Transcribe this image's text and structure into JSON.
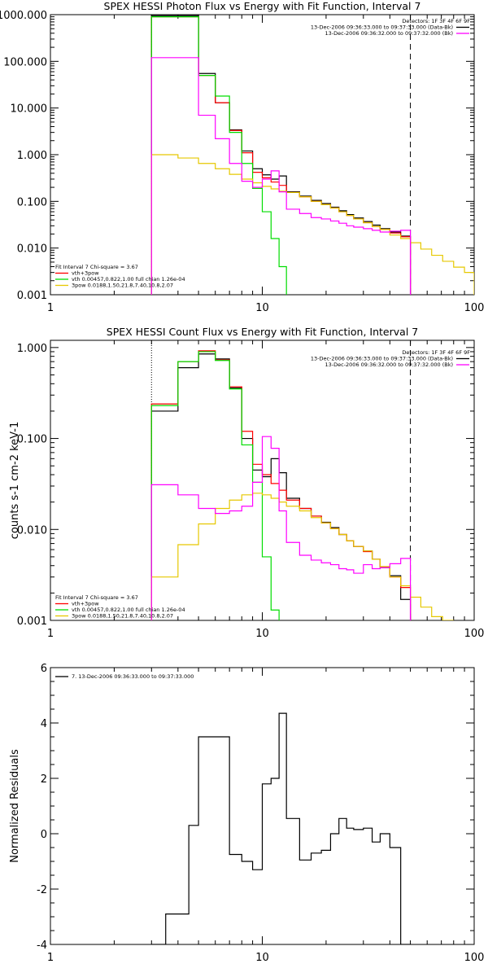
{
  "chart_data": [
    {
      "type": "line",
      "title": "SPEX HESSI Photon Flux vs Energy with Fit Function, Interval 7",
      "xlabel": "",
      "ylabel": "",
      "x_scale": "log",
      "y_scale": "log",
      "xlim": [
        1,
        100
      ],
      "ylim": [
        0.001,
        1000
      ],
      "x_tick_labels": [
        "1",
        "10",
        "100"
      ],
      "y_tick_labels": [
        "0.001",
        "0.010",
        "0.100",
        "1.000",
        "10.000",
        "100.000",
        "1000.000"
      ],
      "vlines": [
        {
          "x": 3,
          "style": "dotted",
          "color": "#000000"
        },
        {
          "x": 50,
          "style": "dashed",
          "color": "#000000"
        }
      ],
      "info_lines": [
        "Detectors: 1F 3F 4F 6F 9F",
        "13-Dec-2006 09:36:33.000 to 09:37:33.000 (Data-Bk)",
        "13-Dec-2006 09:36:32.000 to 09:37:32.000 (Bk)"
      ],
      "info_colors": [
        "#000000",
        "#ff00ff"
      ],
      "legend_title": "Fit Interval  7    Chi-square = 3.67",
      "legend_entries": [
        {
          "label": "vth+3pow",
          "color": "#ff0000"
        },
        {
          "label": "vth 0.00457,0.822,1.00   full chian 1.26e-04",
          "color": "#00dd00"
        },
        {
          "label": "3pow 0.0188,1.50,21.8,7.40,10.8,2.07",
          "color": "#e6c800"
        }
      ],
      "series": [
        {
          "name": "Data-Bk",
          "color": "#000000",
          "edges": [
            3,
            4,
            5,
            6,
            7,
            8,
            9,
            10,
            11,
            12,
            13,
            15,
            17,
            19,
            21,
            23,
            25,
            27,
            30,
            33,
            36,
            40,
            45,
            50
          ],
          "values": [
            950,
            950,
            55,
            13,
            3.4,
            1.2,
            0.5,
            0.37,
            0.3,
            0.35,
            0.16,
            0.13,
            0.105,
            0.09,
            0.075,
            0.063,
            0.052,
            0.044,
            0.037,
            0.031,
            0.026,
            0.022,
            0.018
          ]
        },
        {
          "name": "vth+3pow",
          "color": "#ff0000",
          "edges": [
            3,
            4,
            5,
            6,
            7,
            8,
            9,
            10,
            11,
            12,
            13,
            15,
            17,
            19,
            21,
            23,
            25,
            27,
            30,
            33,
            36,
            40,
            45,
            50
          ],
          "values": [
            900,
            900,
            50,
            13,
            3.3,
            1.1,
            0.42,
            0.32,
            0.26,
            0.22,
            0.155,
            0.125,
            0.1,
            0.085,
            0.072,
            0.06,
            0.05,
            0.042,
            0.035,
            0.029,
            0.025,
            0.021,
            0.0175
          ]
        },
        {
          "name": "vth",
          "color": "#00dd00",
          "edges": [
            3,
            4,
            5,
            6,
            7,
            8,
            9,
            10,
            11,
            12,
            13
          ],
          "values": [
            900,
            900,
            50,
            18,
            3.0,
            0.65,
            0.19,
            0.06,
            0.016,
            0.004
          ]
        },
        {
          "name": "3pow",
          "color": "#e6c800",
          "edges": [
            3,
            4,
            5,
            6,
            7,
            8,
            9,
            10,
            11,
            12,
            13,
            15,
            17,
            19,
            21,
            23,
            25,
            27,
            30,
            33,
            36,
            40,
            45,
            50,
            56,
            63,
            71,
            80,
            90,
            100
          ],
          "values": [
            1.0,
            0.85,
            0.65,
            0.5,
            0.38,
            0.3,
            0.25,
            0.21,
            0.185,
            0.165,
            0.155,
            0.125,
            0.1,
            0.085,
            0.072,
            0.06,
            0.05,
            0.042,
            0.035,
            0.029,
            0.025,
            0.019,
            0.016,
            0.013,
            0.0095,
            0.007,
            0.0052,
            0.0039,
            0.003
          ]
        },
        {
          "name": "Bk",
          "color": "#ff00ff",
          "edges": [
            3,
            4,
            5,
            6,
            7,
            8,
            9,
            10,
            11,
            12,
            13,
            15,
            17,
            19,
            21,
            23,
            25,
            27,
            30,
            33,
            36,
            40,
            45,
            50
          ],
          "values": [
            120,
            120,
            7,
            2.2,
            0.65,
            0.27,
            0.2,
            0.3,
            0.45,
            0.16,
            0.068,
            0.055,
            0.045,
            0.042,
            0.038,
            0.034,
            0.03,
            0.028,
            0.026,
            0.024,
            0.022,
            0.023,
            0.024
          ]
        }
      ]
    },
    {
      "type": "line",
      "title": "SPEX HESSI Count Flux vs Energy with Fit Function, Interval 7",
      "xlabel": "",
      "ylabel": "counts s-1 cm-2 keV-1",
      "x_scale": "log",
      "y_scale": "log",
      "xlim": [
        1,
        100
      ],
      "ylim": [
        0.001,
        1.2
      ],
      "x_tick_labels": [
        "1",
        "10",
        "100"
      ],
      "y_tick_labels": [
        "0.001",
        "0.010",
        "0.100",
        "1.000"
      ],
      "vlines": [
        {
          "x": 3,
          "style": "dotted",
          "color": "#000000"
        },
        {
          "x": 50,
          "style": "dashed",
          "color": "#000000"
        }
      ],
      "info_lines": [
        "Detectors: 1F 3F 4F 6F 9F",
        "13-Dec-2006 09:36:33.000 to 09:37:33.000 (Data-Bk)",
        "13-Dec-2006 09:36:32.000 to 09:37:32.000 (Bk)"
      ],
      "info_colors": [
        "#000000",
        "#ff00ff"
      ],
      "legend_title": "Fit Interval  7    Chi-square = 3.67",
      "legend_entries": [
        {
          "label": "vth+3pow",
          "color": "#ff0000"
        },
        {
          "label": "vth 0.00457,0.822,1.00   full chian 1.26e-04",
          "color": "#00dd00"
        },
        {
          "label": "3pow 0.0188,1.50,21.8,7.40,10.8,2.07",
          "color": "#e6c800"
        }
      ],
      "series": [
        {
          "name": "Data-Bk",
          "color": "#000000",
          "edges": [
            3,
            4,
            5,
            6,
            7,
            8,
            9,
            10,
            11,
            12,
            13,
            15,
            17,
            19,
            21,
            23,
            25,
            27,
            30,
            33,
            36,
            40,
            45,
            50
          ],
          "values": [
            0.2,
            0.6,
            0.85,
            0.75,
            0.36,
            0.1,
            0.045,
            0.038,
            0.06,
            0.042,
            0.022,
            0.017,
            0.014,
            0.012,
            0.0105,
            0.0088,
            0.0075,
            0.0065,
            0.0058,
            0.0047,
            0.0038,
            0.0031,
            0.0017
          ]
        },
        {
          "name": "vth+3pow",
          "color": "#ff0000",
          "edges": [
            3,
            4,
            5,
            6,
            7,
            8,
            9,
            10,
            11,
            12,
            13,
            15,
            17,
            19,
            21,
            23,
            25,
            27,
            30,
            33,
            36,
            40,
            45,
            50
          ],
          "values": [
            0.24,
            0.7,
            0.92,
            0.73,
            0.37,
            0.12,
            0.052,
            0.04,
            0.032,
            0.027,
            0.021,
            0.017,
            0.014,
            0.0118,
            0.0102,
            0.0088,
            0.0075,
            0.0065,
            0.0057,
            0.0047,
            0.0039,
            0.003,
            0.0023
          ]
        },
        {
          "name": "vth",
          "color": "#00dd00",
          "edges": [
            3,
            4,
            5,
            6,
            7,
            8,
            9,
            10,
            11,
            12
          ],
          "values": [
            0.23,
            0.7,
            0.9,
            0.72,
            0.35,
            0.085,
            0.033,
            0.005,
            0.0013
          ]
        },
        {
          "name": "3pow",
          "color": "#e6c800",
          "edges": [
            3,
            4,
            5,
            6,
            7,
            8,
            9,
            10,
            11,
            12,
            13,
            15,
            17,
            19,
            21,
            23,
            25,
            27,
            30,
            33,
            36,
            40,
            45,
            50,
            56,
            63,
            71,
            80
          ],
          "values": [
            0.003,
            0.0068,
            0.0115,
            0.017,
            0.021,
            0.024,
            0.025,
            0.024,
            0.022,
            0.02,
            0.018,
            0.016,
            0.0135,
            0.0118,
            0.0102,
            0.0088,
            0.0075,
            0.0065,
            0.0058,
            0.0047,
            0.0039,
            0.003,
            0.0024,
            0.0018,
            0.0014,
            0.0011,
            0.00095
          ]
        },
        {
          "name": "Bk",
          "color": "#ff00ff",
          "edges": [
            3,
            4,
            5,
            6,
            7,
            8,
            9,
            10,
            11,
            12,
            13,
            15,
            17,
            19,
            21,
            23,
            25,
            27,
            30,
            33,
            36,
            40,
            45,
            50
          ],
          "values": [
            0.031,
            0.024,
            0.017,
            0.015,
            0.016,
            0.018,
            0.033,
            0.105,
            0.078,
            0.016,
            0.0072,
            0.0052,
            0.0046,
            0.0043,
            0.0041,
            0.0037,
            0.0036,
            0.0033,
            0.0041,
            0.0037,
            0.0038,
            0.0042,
            0.0048
          ]
        }
      ]
    },
    {
      "type": "line",
      "title": "",
      "xlabel": "",
      "ylabel": "Normalized Residuals",
      "x_scale": "log",
      "y_scale": "linear",
      "xlim": [
        1,
        100
      ],
      "ylim": [
        -4,
        6
      ],
      "x_tick_labels": [
        "1",
        "10",
        "100"
      ],
      "y_tick_labels": [
        "-4",
        "-2",
        "0",
        "2",
        "4",
        "6"
      ],
      "vlines": [],
      "legend_title": "",
      "legend_entries": [
        {
          "label": "7. 13-Dec-2006 09:36:33.000 to 09:37:33.000",
          "color": "#000000"
        }
      ],
      "series": [
        {
          "name": "",
          "color": "#000000",
          "edges": [
            3,
            3.5,
            4,
            4.5,
            5,
            6,
            7,
            8,
            9,
            10,
            11,
            12,
            13,
            15,
            17,
            19,
            21,
            23,
            25,
            27,
            30,
            33,
            36,
            40,
            45,
            50
          ],
          "values": [
            -4.0,
            -2.9,
            -2.9,
            0.3,
            3.5,
            3.5,
            -0.75,
            -1.0,
            -1.3,
            1.8,
            2.0,
            4.35,
            0.55,
            -0.95,
            -0.7,
            -0.6,
            0.0,
            0.55,
            0.2,
            0.15,
            0.2,
            -0.3,
            0.0,
            -0.5,
            -4.0
          ]
        }
      ]
    }
  ]
}
